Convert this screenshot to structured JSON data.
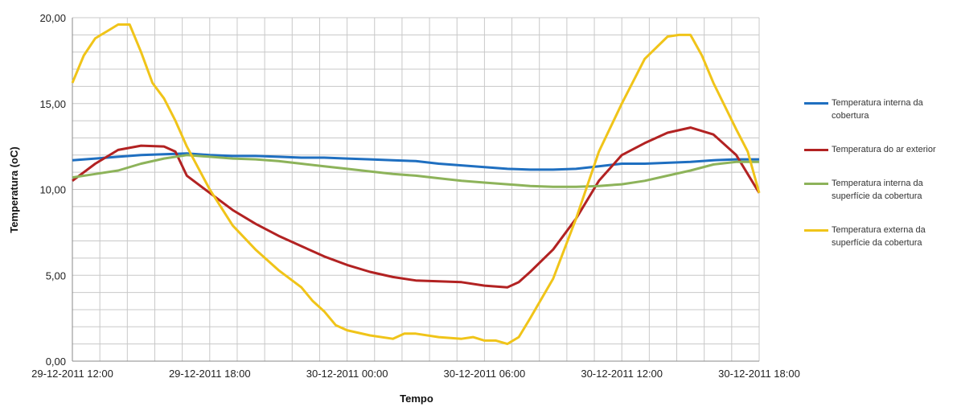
{
  "chart_data": {
    "type": "line",
    "title": "",
    "xlabel": "Tempo",
    "ylabel": "Temperatura (oC)",
    "ylim": [
      0,
      20
    ],
    "yticks": [
      "0,00",
      "5,00",
      "10,00",
      "15,00",
      "20,00"
    ],
    "xlim": [
      0,
      30
    ],
    "xticks": [
      {
        "x": 0,
        "label": "29-12-2011 12:00"
      },
      {
        "x": 6,
        "label": "29-12-2011 18:00"
      },
      {
        "x": 12,
        "label": "30-12-2011 00:00"
      },
      {
        "x": 18,
        "label": "30-12-2011 06:00"
      },
      {
        "x": 24,
        "label": "30-12-2011 12:00"
      },
      {
        "x": 30,
        "label": "30-12-2011 18:00"
      }
    ],
    "x_unit": "hours from 29-12-2011 12:00",
    "grid": true,
    "legend_position": "right",
    "series": [
      {
        "name": "Temperatura interna da cobertura",
        "color": "#1f6fc0",
        "points": [
          [
            0,
            11.7
          ],
          [
            1,
            11.8
          ],
          [
            2,
            11.9
          ],
          [
            3,
            12.0
          ],
          [
            4,
            12.05
          ],
          [
            5,
            12.1
          ],
          [
            6,
            12.0
          ],
          [
            7,
            11.95
          ],
          [
            8,
            11.95
          ],
          [
            9,
            11.9
          ],
          [
            10,
            11.85
          ],
          [
            11,
            11.85
          ],
          [
            12,
            11.8
          ],
          [
            13,
            11.75
          ],
          [
            14,
            11.7
          ],
          [
            15,
            11.65
          ],
          [
            16,
            11.5
          ],
          [
            17,
            11.4
          ],
          [
            18,
            11.3
          ],
          [
            19,
            11.2
          ],
          [
            20,
            11.15
          ],
          [
            21,
            11.15
          ],
          [
            22,
            11.2
          ],
          [
            23,
            11.35
          ],
          [
            24,
            11.5
          ],
          [
            25,
            11.5
          ],
          [
            26,
            11.55
          ],
          [
            27,
            11.6
          ],
          [
            28,
            11.7
          ],
          [
            29,
            11.75
          ],
          [
            30,
            11.75
          ]
        ]
      },
      {
        "name": "Temperatura do ar exterior",
        "color": "#b22222",
        "points": [
          [
            0,
            10.5
          ],
          [
            1,
            11.5
          ],
          [
            2,
            12.3
          ],
          [
            3,
            12.55
          ],
          [
            4,
            12.5
          ],
          [
            4.5,
            12.2
          ],
          [
            5,
            10.8
          ],
          [
            6,
            9.8
          ],
          [
            7,
            8.8
          ],
          [
            8,
            8.0
          ],
          [
            9,
            7.3
          ],
          [
            10,
            6.7
          ],
          [
            11,
            6.1
          ],
          [
            12,
            5.6
          ],
          [
            13,
            5.2
          ],
          [
            14,
            4.9
          ],
          [
            15,
            4.7
          ],
          [
            16,
            4.65
          ],
          [
            17,
            4.6
          ],
          [
            18,
            4.4
          ],
          [
            19,
            4.3
          ],
          [
            19.5,
            4.6
          ],
          [
            20,
            5.2
          ],
          [
            21,
            6.5
          ],
          [
            22,
            8.3
          ],
          [
            23,
            10.5
          ],
          [
            24,
            12.0
          ],
          [
            25,
            12.7
          ],
          [
            26,
            13.3
          ],
          [
            27,
            13.6
          ],
          [
            28,
            13.2
          ],
          [
            29,
            12.0
          ],
          [
            30,
            9.8
          ]
        ]
      },
      {
        "name": "Temperatura interna da superfície da cobertura",
        "color": "#8db35a",
        "points": [
          [
            0,
            10.7
          ],
          [
            1,
            10.9
          ],
          [
            2,
            11.1
          ],
          [
            3,
            11.5
          ],
          [
            4,
            11.8
          ],
          [
            5,
            12.0
          ],
          [
            6,
            11.9
          ],
          [
            7,
            11.8
          ],
          [
            8,
            11.75
          ],
          [
            9,
            11.65
          ],
          [
            10,
            11.5
          ],
          [
            11,
            11.35
          ],
          [
            12,
            11.2
          ],
          [
            13,
            11.05
          ],
          [
            14,
            10.9
          ],
          [
            15,
            10.8
          ],
          [
            16,
            10.65
          ],
          [
            17,
            10.5
          ],
          [
            18,
            10.4
          ],
          [
            19,
            10.3
          ],
          [
            20,
            10.2
          ],
          [
            21,
            10.15
          ],
          [
            22,
            10.15
          ],
          [
            23,
            10.2
          ],
          [
            24,
            10.3
          ],
          [
            25,
            10.5
          ],
          [
            26,
            10.8
          ],
          [
            27,
            11.1
          ],
          [
            28,
            11.45
          ],
          [
            29,
            11.6
          ],
          [
            30,
            11.6
          ]
        ]
      },
      {
        "name": "Temperatura externa da superfície da cobertura",
        "color": "#f0c419",
        "points": [
          [
            0,
            16.2
          ],
          [
            0.5,
            17.8
          ],
          [
            1,
            18.8
          ],
          [
            1.5,
            19.2
          ],
          [
            2,
            19.6
          ],
          [
            2.5,
            19.6
          ],
          [
            3,
            18.0
          ],
          [
            3.5,
            16.2
          ],
          [
            4,
            15.3
          ],
          [
            4.5,
            14.0
          ],
          [
            5,
            12.5
          ],
          [
            6,
            10.0
          ],
          [
            7,
            7.9
          ],
          [
            8,
            6.5
          ],
          [
            9,
            5.3
          ],
          [
            10,
            4.3
          ],
          [
            10.5,
            3.5
          ],
          [
            11,
            2.9
          ],
          [
            11.5,
            2.1
          ],
          [
            12,
            1.8
          ],
          [
            13,
            1.5
          ],
          [
            14,
            1.3
          ],
          [
            14.5,
            1.6
          ],
          [
            15,
            1.6
          ],
          [
            16,
            1.4
          ],
          [
            17,
            1.3
          ],
          [
            17.5,
            1.4
          ],
          [
            18,
            1.2
          ],
          [
            18.5,
            1.2
          ],
          [
            19,
            1.0
          ],
          [
            19.5,
            1.4
          ],
          [
            20,
            2.5
          ],
          [
            21,
            4.8
          ],
          [
            22,
            8.3
          ],
          [
            23,
            12.2
          ],
          [
            24,
            15.0
          ],
          [
            25,
            17.6
          ],
          [
            26,
            18.9
          ],
          [
            26.5,
            19.0
          ],
          [
            27,
            19.0
          ],
          [
            27.5,
            17.8
          ],
          [
            28,
            16.2
          ],
          [
            29,
            13.5
          ],
          [
            29.5,
            12.2
          ],
          [
            30,
            9.8
          ]
        ]
      }
    ]
  }
}
